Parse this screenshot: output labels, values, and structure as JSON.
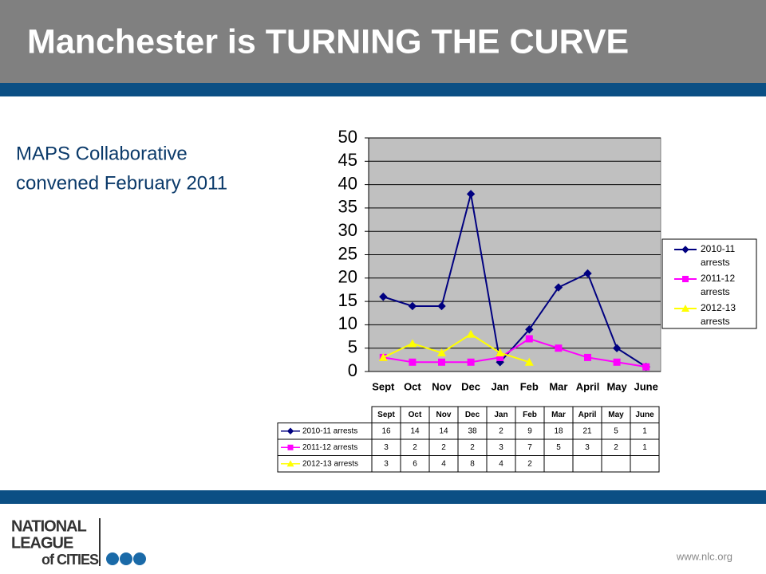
{
  "slide": {
    "title": "Manchester is TURNING THE CURVE",
    "note_lines": [
      "MAPS Collaborative",
      "convened February 2011"
    ],
    "logo_lines": [
      "NATIONAL",
      "LEAGUE",
      "of CITIES"
    ],
    "url": "www.nlc.org"
  },
  "chart_data": {
    "type": "line",
    "categories": [
      "Sept",
      "Oct",
      "Nov",
      "Dec",
      "Jan",
      "Feb",
      "Mar",
      "April",
      "May",
      "June"
    ],
    "series": [
      {
        "name": "2010-11 arrests",
        "color": "#000080",
        "marker": "diamond",
        "values": [
          16,
          14,
          14,
          38,
          2,
          9,
          18,
          21,
          5,
          1
        ]
      },
      {
        "name": "2011-12 arrests",
        "color": "#ff00ff",
        "marker": "square",
        "values": [
          3,
          2,
          2,
          2,
          3,
          7,
          5,
          3,
          2,
          1
        ]
      },
      {
        "name": "2012-13 arrests",
        "color": "#ffff00",
        "marker": "triangle",
        "values": [
          3,
          6,
          4,
          8,
          4,
          2,
          null,
          null,
          null,
          null
        ]
      }
    ],
    "ylim": [
      0,
      50
    ],
    "yticks": [
      0,
      5,
      10,
      15,
      20,
      25,
      30,
      35,
      40,
      45,
      50
    ],
    "grid": true,
    "legend": "right",
    "data_table": true
  }
}
